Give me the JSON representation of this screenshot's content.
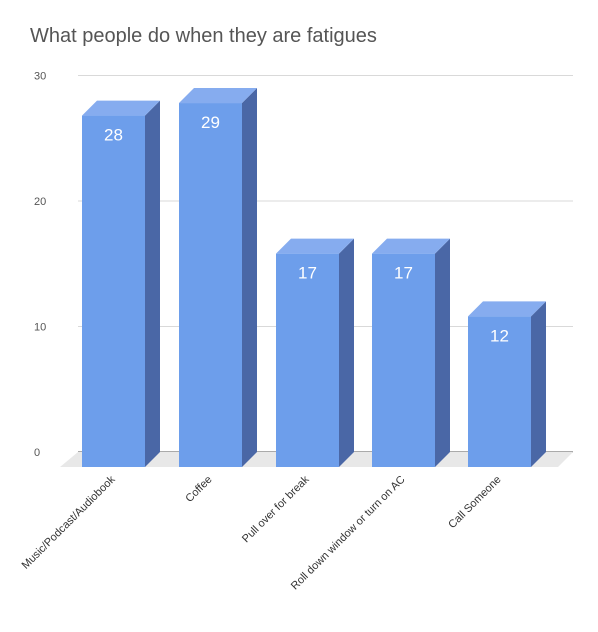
{
  "chart_data": {
    "type": "bar",
    "title": "What people do when they are fatigues",
    "categories": [
      "Music/Podcast/Audiobook",
      "Coffee",
      "Pull over for break",
      "Roll down window or turn on AC",
      "Call Someone"
    ],
    "values": [
      28,
      29,
      17,
      17,
      12
    ],
    "data_labels": [
      "28",
      "29",
      "17",
      "17",
      "12"
    ],
    "y_ticks": [
      "0",
      "10",
      "20",
      "30"
    ],
    "ylim": [
      0,
      30
    ],
    "xlabel": "",
    "ylabel": "",
    "grid": true,
    "legend": "none",
    "style": "3d-column"
  },
  "colors": {
    "bar_front": "#6d9eeb",
    "bar_side": "#4a67a6",
    "bar_top": "#86acef",
    "floor": "#e8e8e8",
    "gridline": "#d9d9d9"
  }
}
